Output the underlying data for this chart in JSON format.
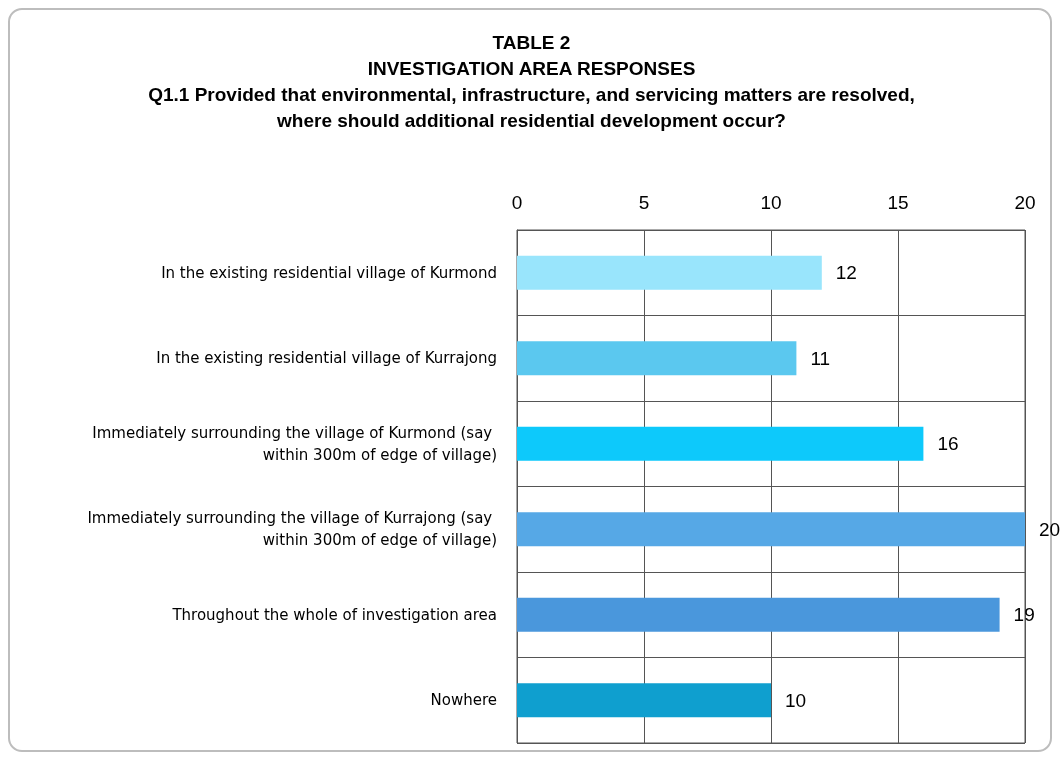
{
  "chart_data": {
    "type": "bar",
    "orientation": "horizontal",
    "title": "TABLE 2",
    "subtitle": "INVESTIGATION AREA RESPONSES",
    "annotations": [
      "Q1.1 Provided that environmental, infrastructure, and servicing matters are resolved, where should additional residential development occur?"
    ],
    "categories": [
      "In the existing residential village of Kurmond",
      "In the existing residential village of Kurrajong",
      "Immediately surrounding the village of Kurmond (say within 300m of edge of village)",
      "Immediately surrounding the village of Kurrajong (say within 300m of edge of village)",
      "Throughout the whole of investigation area",
      "Nowhere"
    ],
    "values": [
      12,
      11,
      16,
      20,
      19,
      10
    ],
    "colors": [
      "#99e5fc",
      "#5bc8ef",
      "#0dc9fb",
      "#56a8e6",
      "#4a97dc",
      "#0f9fcf"
    ],
    "xlim": [
      0,
      20
    ],
    "xticks": [
      0,
      5,
      10,
      15,
      20
    ],
    "grid": true,
    "data_labels": true
  }
}
